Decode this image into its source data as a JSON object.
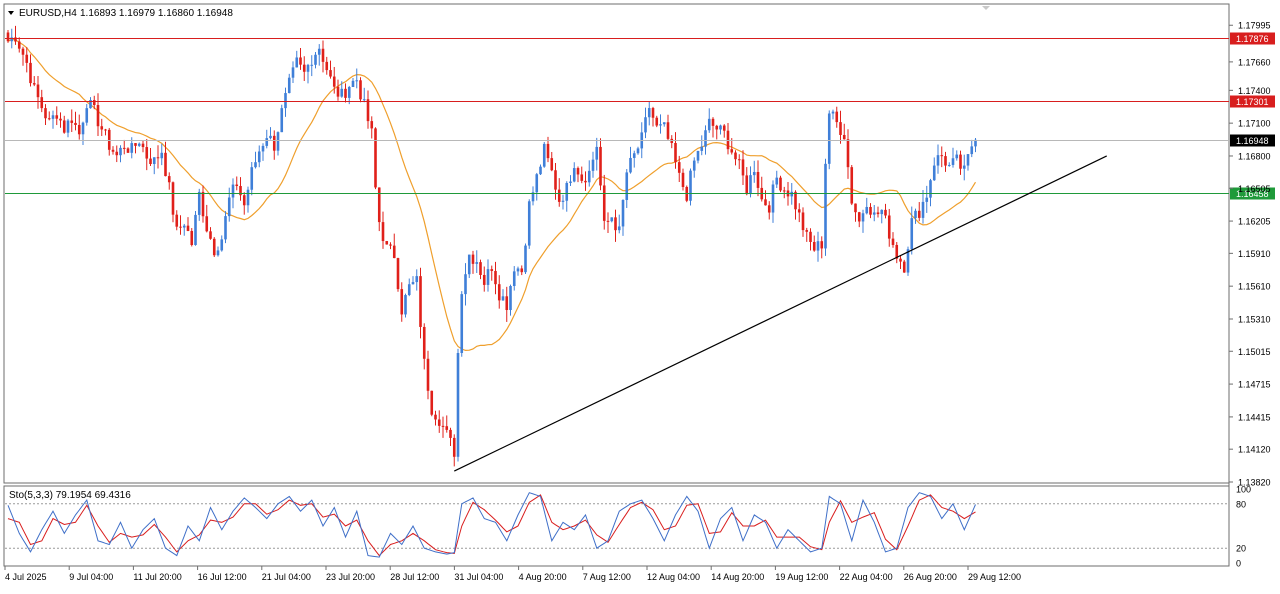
{
  "header": {
    "symbol_label": "EURUSD,H4",
    "ohlc_text": "1.16893 1.16979 1.16860 1.16948"
  },
  "indicator": {
    "label": "Sto(5,3,3) 79.1954 69.4316",
    "scale_labels": [
      "100",
      "80",
      "20",
      "0"
    ]
  },
  "colors": {
    "bull": "#3f7fd8",
    "bear": "#e0201a",
    "ma": "#ef9f2c",
    "resistance": "#d81e1e",
    "support": "#1f9a3a",
    "current": "#b8b8b8",
    "trendline": "#000000",
    "sto_main": "#3f6fc8",
    "sto_signal": "#d91e1e"
  },
  "chart_data": {
    "type": "candlestick",
    "symbol": "EURUSD",
    "timeframe": "H4",
    "ylim": [
      1.1382,
      1.1818
    ],
    "y_ticks": [
      "1.17995",
      "1.17660",
      "1.17400",
      "1.17100",
      "1.16800",
      "1.16505",
      "1.16205",
      "1.15910",
      "1.15610",
      "1.15310",
      "1.15015",
      "1.14715",
      "1.14415",
      "1.14120",
      "1.13820"
    ],
    "x_labels": [
      "4 Jul 2025",
      "9 Jul 04:00",
      "11 Jul 20:00",
      "16 Jul 12:00",
      "21 Jul 04:00",
      "23 Jul 20:00",
      "28 Jul 12:00",
      "31 Jul 04:00",
      "4 Aug 20:00",
      "7 Aug 12:00",
      "12 Aug 04:00",
      "14 Aug 20:00",
      "19 Aug 12:00",
      "22 Aug 04:00",
      "26 Aug 20:00",
      "29 Aug 12:00"
    ],
    "horizontal_lines": [
      {
        "price": 1.17876,
        "label": "1.17876",
        "role": "resistance"
      },
      {
        "price": 1.17301,
        "label": "1.17301",
        "role": "resistance"
      },
      {
        "price": 1.16948,
        "label": "1.16948",
        "role": "current"
      },
      {
        "price": 1.16458,
        "label": "1.16458",
        "role": "support"
      }
    ],
    "trendline": {
      "from": {
        "bar": 119,
        "price": 1.1392
      },
      "to": {
        "bar": 293,
        "price": 1.168
      }
    },
    "path_points": [
      [
        0,
        1.1785
      ],
      [
        2,
        1.179
      ],
      [
        5,
        1.1765
      ],
      [
        7,
        1.174
      ],
      [
        9,
        1.1725
      ],
      [
        11,
        1.171
      ],
      [
        13,
        1.172
      ],
      [
        15,
        1.1705
      ],
      [
        17,
        1.1715
      ],
      [
        19,
        1.17
      ],
      [
        21,
        1.173
      ],
      [
        23,
        1.172
      ],
      [
        25,
        1.1705
      ],
      [
        27,
        1.169
      ],
      [
        29,
        1.168
      ],
      [
        31,
        1.169
      ],
      [
        33,
        1.1685
      ],
      [
        35,
        1.1695
      ],
      [
        37,
        1.168
      ],
      [
        39,
        1.1675
      ],
      [
        41,
        1.1685
      ],
      [
        43,
        1.165
      ],
      [
        45,
        1.161
      ],
      [
        47,
        1.162
      ],
      [
        49,
        1.16
      ],
      [
        51,
        1.1645
      ],
      [
        53,
        1.1615
      ],
      [
        55,
        1.1595
      ],
      [
        57,
        1.1605
      ],
      [
        59,
        1.164
      ],
      [
        61,
        1.1655
      ],
      [
        63,
        1.1635
      ],
      [
        65,
        1.1665
      ],
      [
        67,
        1.1685
      ],
      [
        69,
        1.17
      ],
      [
        71,
        1.169
      ],
      [
        73,
        1.172
      ],
      [
        75,
        1.1745
      ],
      [
        77,
        1.1765
      ],
      [
        79,
        1.1755
      ],
      [
        81,
        1.177
      ],
      [
        83,
        1.178
      ],
      [
        85,
        1.176
      ],
      [
        87,
        1.174
      ],
      [
        89,
        1.1735
      ],
      [
        91,
        1.1745
      ],
      [
        93,
        1.175
      ],
      [
        95,
        1.1725
      ],
      [
        97,
        1.17
      ],
      [
        98,
        1.165
      ],
      [
        99,
        1.162
      ],
      [
        101,
        1.1595
      ],
      [
        103,
        1.159
      ],
      [
        105,
        1.154
      ],
      [
        107,
        1.156
      ],
      [
        109,
        1.1565
      ],
      [
        111,
        1.149
      ],
      [
        113,
        1.145
      ],
      [
        115,
        1.144
      ],
      [
        117,
        1.1425
      ],
      [
        119,
        1.141
      ],
      [
        120,
        1.15
      ],
      [
        121,
        1.156
      ],
      [
        123,
        1.159
      ],
      [
        125,
        1.1585
      ],
      [
        127,
        1.1565
      ],
      [
        129,
        1.158
      ],
      [
        131,
        1.1555
      ],
      [
        133,
        1.1545
      ],
      [
        135,
        1.158
      ],
      [
        137,
        1.1575
      ],
      [
        139,
        1.1635
      ],
      [
        141,
        1.166
      ],
      [
        143,
        1.1685
      ],
      [
        145,
        1.1665
      ],
      [
        147,
        1.164
      ],
      [
        149,
        1.165
      ],
      [
        151,
        1.1675
      ],
      [
        153,
        1.166
      ],
      [
        155,
        1.1665
      ],
      [
        157,
        1.169
      ],
      [
        159,
        1.1615
      ],
      [
        161,
        1.1625
      ],
      [
        163,
        1.161
      ],
      [
        165,
        1.1665
      ],
      [
        167,
        1.168
      ],
      [
        169,
        1.1695
      ],
      [
        171,
        1.1725
      ],
      [
        173,
        1.1705
      ],
      [
        175,
        1.1705
      ],
      [
        177,
        1.1685
      ],
      [
        179,
        1.166
      ],
      [
        181,
        1.1645
      ],
      [
        183,
        1.1675
      ],
      [
        185,
        1.169
      ],
      [
        187,
        1.171
      ],
      [
        189,
        1.1705
      ],
      [
        191,
        1.17
      ],
      [
        193,
        1.1685
      ],
      [
        195,
        1.167
      ],
      [
        197,
        1.165
      ],
      [
        199,
        1.167
      ],
      [
        201,
        1.164
      ],
      [
        203,
        1.1635
      ],
      [
        205,
        1.166
      ],
      [
        207,
        1.165
      ],
      [
        209,
        1.1645
      ],
      [
        211,
        1.1625
      ],
      [
        213,
        1.1605
      ],
      [
        215,
        1.1595
      ],
      [
        217,
        1.16
      ],
      [
        218,
        1.1675
      ],
      [
        219,
        1.172
      ],
      [
        221,
        1.171
      ],
      [
        223,
        1.17
      ],
      [
        225,
        1.164
      ],
      [
        227,
        1.162
      ],
      [
        229,
        1.164
      ],
      [
        231,
        1.1625
      ],
      [
        233,
        1.163
      ],
      [
        235,
        1.161
      ],
      [
        237,
        1.159
      ],
      [
        239,
        1.158
      ],
      [
        241,
        1.162
      ],
      [
        243,
        1.163
      ],
      [
        245,
        1.1645
      ],
      [
        247,
        1.1675
      ],
      [
        249,
        1.168
      ],
      [
        251,
        1.167
      ],
      [
        253,
        1.1675
      ],
      [
        255,
        1.1665
      ],
      [
        257,
        1.169
      ],
      [
        258,
        1.1695
      ]
    ],
    "stochastic": {
      "params": "5,3,3",
      "main_last": 79.1954,
      "signal_last": 69.4316,
      "ylim": [
        0,
        100
      ],
      "levels": [
        80,
        20
      ],
      "main_points": [
        [
          0,
          78
        ],
        [
          3,
          40
        ],
        [
          6,
          15
        ],
        [
          9,
          45
        ],
        [
          12,
          70
        ],
        [
          15,
          40
        ],
        [
          18,
          65
        ],
        [
          21,
          85
        ],
        [
          24,
          30
        ],
        [
          27,
          25
        ],
        [
          30,
          55
        ],
        [
          33,
          20
        ],
        [
          36,
          45
        ],
        [
          39,
          60
        ],
        [
          42,
          20
        ],
        [
          45,
          10
        ],
        [
          48,
          50
        ],
        [
          51,
          30
        ],
        [
          54,
          75
        ],
        [
          57,
          45
        ],
        [
          60,
          70
        ],
        [
          63,
          88
        ],
        [
          66,
          75
        ],
        [
          69,
          60
        ],
        [
          72,
          80
        ],
        [
          75,
          90
        ],
        [
          78,
          70
        ],
        [
          81,
          85
        ],
        [
          84,
          50
        ],
        [
          87,
          75
        ],
        [
          90,
          35
        ],
        [
          93,
          70
        ],
        [
          96,
          10
        ],
        [
          99,
          8
        ],
        [
          102,
          40
        ],
        [
          105,
          25
        ],
        [
          108,
          50
        ],
        [
          111,
          20
        ],
        [
          114,
          15
        ],
        [
          117,
          12
        ],
        [
          119,
          14
        ],
        [
          121,
          80
        ],
        [
          124,
          88
        ],
        [
          127,
          60
        ],
        [
          130,
          55
        ],
        [
          133,
          30
        ],
        [
          136,
          65
        ],
        [
          139,
          95
        ],
        [
          142,
          90
        ],
        [
          145,
          30
        ],
        [
          148,
          55
        ],
        [
          151,
          45
        ],
        [
          154,
          65
        ],
        [
          157,
          20
        ],
        [
          160,
          30
        ],
        [
          163,
          70
        ],
        [
          166,
          80
        ],
        [
          169,
          85
        ],
        [
          172,
          60
        ],
        [
          175,
          30
        ],
        [
          178,
          65
        ],
        [
          181,
          90
        ],
        [
          184,
          70
        ],
        [
          187,
          20
        ],
        [
          190,
          60
        ],
        [
          193,
          75
        ],
        [
          196,
          30
        ],
        [
          199,
          65
        ],
        [
          202,
          55
        ],
        [
          205,
          20
        ],
        [
          208,
          45
        ],
        [
          211,
          30
        ],
        [
          214,
          15
        ],
        [
          217,
          20
        ],
        [
          219,
          90
        ],
        [
          222,
          80
        ],
        [
          225,
          30
        ],
        [
          228,
          85
        ],
        [
          231,
          55
        ],
        [
          234,
          15
        ],
        [
          237,
          20
        ],
        [
          240,
          75
        ],
        [
          243,
          95
        ],
        [
          246,
          90
        ],
        [
          249,
          60
        ],
        [
          252,
          80
        ],
        [
          255,
          45
        ],
        [
          258,
          79
        ]
      ],
      "signal_points": [
        [
          0,
          60
        ],
        [
          3,
          55
        ],
        [
          6,
          25
        ],
        [
          9,
          30
        ],
        [
          12,
          60
        ],
        [
          15,
          52
        ],
        [
          18,
          55
        ],
        [
          21,
          78
        ],
        [
          24,
          50
        ],
        [
          27,
          28
        ],
        [
          30,
          40
        ],
        [
          33,
          35
        ],
        [
          36,
          38
        ],
        [
          39,
          52
        ],
        [
          42,
          35
        ],
        [
          45,
          15
        ],
        [
          48,
          30
        ],
        [
          51,
          38
        ],
        [
          54,
          58
        ],
        [
          57,
          55
        ],
        [
          60,
          62
        ],
        [
          63,
          80
        ],
        [
          66,
          80
        ],
        [
          69,
          66
        ],
        [
          72,
          72
        ],
        [
          75,
          85
        ],
        [
          78,
          78
        ],
        [
          81,
          80
        ],
        [
          84,
          62
        ],
        [
          87,
          66
        ],
        [
          90,
          50
        ],
        [
          93,
          58
        ],
        [
          96,
          30
        ],
        [
          99,
          10
        ],
        [
          102,
          25
        ],
        [
          105,
          30
        ],
        [
          108,
          40
        ],
        [
          111,
          30
        ],
        [
          114,
          18
        ],
        [
          117,
          14
        ],
        [
          119,
          13
        ],
        [
          121,
          50
        ],
        [
          124,
          82
        ],
        [
          127,
          72
        ],
        [
          130,
          58
        ],
        [
          133,
          42
        ],
        [
          136,
          50
        ],
        [
          139,
          82
        ],
        [
          142,
          92
        ],
        [
          145,
          55
        ],
        [
          148,
          45
        ],
        [
          151,
          50
        ],
        [
          154,
          58
        ],
        [
          157,
          38
        ],
        [
          160,
          28
        ],
        [
          163,
          52
        ],
        [
          166,
          75
        ],
        [
          169,
          82
        ],
        [
          172,
          72
        ],
        [
          175,
          45
        ],
        [
          178,
          50
        ],
        [
          181,
          78
        ],
        [
          184,
          80
        ],
        [
          187,
          40
        ],
        [
          190,
          42
        ],
        [
          193,
          68
        ],
        [
          196,
          50
        ],
        [
          199,
          50
        ],
        [
          202,
          58
        ],
        [
          205,
          35
        ],
        [
          208,
          35
        ],
        [
          211,
          35
        ],
        [
          214,
          22
        ],
        [
          217,
          18
        ],
        [
          219,
          55
        ],
        [
          222,
          84
        ],
        [
          225,
          55
        ],
        [
          228,
          62
        ],
        [
          231,
          68
        ],
        [
          234,
          32
        ],
        [
          237,
          18
        ],
        [
          240,
          50
        ],
        [
          243,
          85
        ],
        [
          246,
          92
        ],
        [
          249,
          75
        ],
        [
          252,
          70
        ],
        [
          255,
          60
        ],
        [
          258,
          69
        ]
      ]
    }
  }
}
